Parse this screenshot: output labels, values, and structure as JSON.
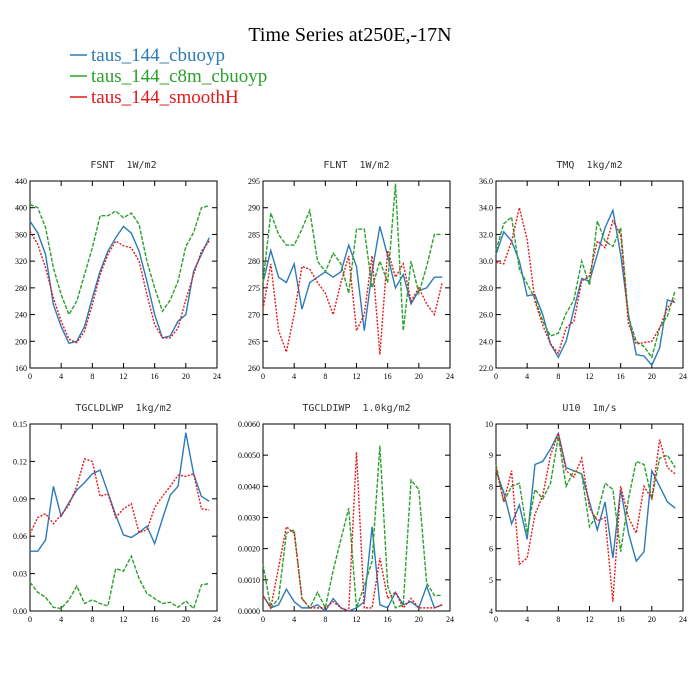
{
  "title": "Time Series at250E,-17N",
  "legend": [
    {
      "name": "taus_144_cbuoyp",
      "color": "#2b7bb9"
    },
    {
      "name": "taus_144_c8m_cbuoyp",
      "color": "#2ca02c"
    },
    {
      "name": "taus_144_smoothH",
      "color": "#e3191c"
    }
  ],
  "chart_data": [
    {
      "type": "line",
      "title": "FSNT  1W/m2",
      "x": [
        0,
        1,
        2,
        3,
        4,
        5,
        6,
        7,
        8,
        9,
        10,
        11,
        12,
        13,
        14,
        15,
        16,
        17,
        18,
        19,
        20,
        21,
        22,
        23
      ],
      "xlim": [
        0,
        24
      ],
      "xticks": [
        0,
        4,
        8,
        12,
        16,
        20,
        24
      ],
      "ylim": [
        160,
        440
      ],
      "yticks": [
        160,
        200,
        240,
        280,
        320,
        360,
        400,
        440
      ],
      "series": [
        {
          "values": [
            380,
            362,
            330,
            255,
            222,
            197,
            200,
            222,
            265,
            305,
            335,
            355,
            372,
            362,
            335,
            290,
            240,
            205,
            208,
            230,
            240,
            305,
            330,
            355
          ]
        },
        {
          "values": [
            405,
            400,
            370,
            310,
            270,
            240,
            260,
            300,
            340,
            388,
            388,
            395,
            385,
            392,
            375,
            320,
            280,
            245,
            262,
            290,
            342,
            363,
            400,
            403
          ]
        },
        {
          "values": [
            365,
            345,
            310,
            265,
            230,
            203,
            198,
            215,
            255,
            300,
            330,
            350,
            343,
            340,
            320,
            270,
            225,
            205,
            205,
            220,
            262,
            300,
            335,
            350
          ]
        }
      ]
    },
    {
      "type": "line",
      "title": "FLNT  1W/m2",
      "x": [
        0,
        1,
        2,
        3,
        4,
        5,
        6,
        7,
        8,
        9,
        10,
        11,
        12,
        13,
        14,
        15,
        16,
        17,
        18,
        19,
        20,
        21,
        22,
        23
      ],
      "xlim": [
        0,
        24
      ],
      "xticks": [
        0,
        4,
        8,
        12,
        16,
        20,
        24
      ],
      "ylim": [
        260,
        295
      ],
      "yticks": [
        260,
        265,
        270,
        275,
        280,
        285,
        290,
        295
      ],
      "series": [
        {
          "values": [
            276,
            282,
            277,
            276,
            279.5,
            271,
            276,
            277,
            278,
            277,
            278,
            283,
            279,
            267,
            278,
            286.5,
            281,
            275,
            277.5,
            272,
            274.5,
            275,
            277,
            277
          ]
        },
        {
          "values": [
            276,
            289,
            285,
            283,
            283,
            286,
            289.5,
            280,
            278,
            281.5,
            279.5,
            274,
            286,
            286,
            275,
            280,
            276,
            294.5,
            267,
            280,
            274,
            279,
            285,
            285
          ]
        },
        {
          "values": [
            271,
            279.5,
            267,
            263,
            270,
            279,
            278.5,
            276,
            274,
            270,
            276,
            281,
            267,
            270,
            281,
            262.5,
            282,
            277,
            279.5,
            272.5,
            275,
            272,
            270,
            276
          ]
        }
      ]
    },
    {
      "type": "line",
      "title": "TMQ  1kg/m2",
      "x": [
        0,
        1,
        2,
        3,
        4,
        5,
        6,
        7,
        8,
        9,
        10,
        11,
        12,
        13,
        14,
        15,
        16,
        17,
        18,
        19,
        20,
        21,
        22,
        23
      ],
      "xlim": [
        0,
        24
      ],
      "xticks": [
        0,
        4,
        8,
        12,
        16,
        20,
        24
      ],
      "ylim": [
        22,
        36
      ],
      "yticks": [
        {
          "value": 22,
          "label": "22.0"
        },
        {
          "value": 24,
          "label": "24.0"
        },
        {
          "value": 26,
          "label": "26.0"
        },
        {
          "value": 28,
          "label": "28.0"
        },
        {
          "value": 30,
          "label": "30.0"
        },
        {
          "value": 32,
          "label": "32.0"
        },
        {
          "value": 34,
          "label": "34.0"
        },
        {
          "value": 36,
          "label": "36.0"
        }
      ],
      "series": [
        {
          "values": [
            30.5,
            32.2,
            31.5,
            30,
            27.4,
            27.5,
            26,
            23.8,
            22.8,
            24,
            26.4,
            28.7,
            28.5,
            30.5,
            32.5,
            33.8,
            30.5,
            26,
            23,
            22.9,
            22.2,
            23.5,
            27.1,
            26.9
          ]
        },
        {
          "values": [
            30.8,
            32.8,
            33.3,
            29.4,
            28.3,
            27.2,
            25.5,
            24.4,
            24.6,
            26.1,
            27.1,
            30,
            28.2,
            33,
            31.5,
            31.1,
            32.5,
            25.8,
            24,
            23.6,
            22.8,
            25,
            25.9,
            27.8
          ]
        },
        {
          "values": [
            29.9,
            29.8,
            31.5,
            34,
            31.6,
            27,
            25.2,
            23.8,
            23.1,
            25,
            25.5,
            28.5,
            28.9,
            31.5,
            31,
            33,
            32,
            25.3,
            23.8,
            23.9,
            24,
            25,
            26.5,
            27.2
          ]
        }
      ]
    },
    {
      "type": "line",
      "title": "TGCLDLWP  1kg/m2",
      "x": [
        0,
        1,
        2,
        3,
        4,
        5,
        6,
        7,
        8,
        9,
        10,
        11,
        12,
        13,
        14,
        15,
        16,
        17,
        18,
        19,
        20,
        21,
        22,
        23
      ],
      "xlim": [
        0,
        24
      ],
      "xticks": [
        0,
        4,
        8,
        12,
        16,
        20,
        24
      ],
      "ylim": [
        0,
        0.15
      ],
      "yticks": [
        {
          "value": 0,
          "label": "0.00"
        },
        0.03,
        0.06,
        0.09,
        0.12,
        0.15
      ],
      "series": [
        {
          "values": [
            0.048,
            0.048,
            0.057,
            0.1,
            0.076,
            0.087,
            0.097,
            0.103,
            0.11,
            0.113,
            0.095,
            0.077,
            0.061,
            0.059,
            0.063,
            0.068,
            0.054,
            0.074,
            0.093,
            0.1,
            0.143,
            0.11,
            0.092,
            0.088
          ]
        },
        {
          "values": [
            0.023,
            0.015,
            0.011,
            0.003,
            0.002,
            0.009,
            0.02,
            0.006,
            0.009,
            0.006,
            0.004,
            0.034,
            0.032,
            0.044,
            0.026,
            0.014,
            0.01,
            0.006,
            0.007,
            0.003,
            0.008,
            0.002,
            0.021,
            0.022
          ]
        },
        {
          "values": [
            0.062,
            0.075,
            0.078,
            0.07,
            0.077,
            0.085,
            0.1,
            0.122,
            0.12,
            0.092,
            0.094,
            0.075,
            0.082,
            0.086,
            0.063,
            0.065,
            0.083,
            0.092,
            0.1,
            0.109,
            0.108,
            0.11,
            0.082,
            0.081
          ]
        }
      ]
    },
    {
      "type": "line",
      "title": "TGCLDIWP  1.0kg/m2",
      "x": [
        0,
        1,
        2,
        3,
        4,
        5,
        6,
        7,
        8,
        9,
        10,
        11,
        12,
        13,
        14,
        15,
        16,
        17,
        18,
        19,
        20,
        21,
        22,
        23
      ],
      "xlim": [
        0,
        24
      ],
      "xticks": [
        0,
        4,
        8,
        12,
        16,
        20,
        24
      ],
      "ylim": [
        0,
        0.006
      ],
      "yticks": [
        {
          "value": 0,
          "label": "0.0000"
        },
        {
          "value": 0.001,
          "label": "0.0010"
        },
        {
          "value": 0.002,
          "label": "0.0020"
        },
        {
          "value": 0.003,
          "label": "0.0030"
        },
        {
          "value": 0.004,
          "label": "0.0040"
        },
        {
          "value": 0.005,
          "label": "0.0050"
        },
        {
          "value": 0.006,
          "label": "0.0060"
        }
      ],
      "series": [
        {
          "values": [
            0.0005,
            0.0001,
            0.0002,
            0.0007,
            0.0003,
            0.0001,
            0.0001,
            0.0002,
            0,
            0.0004,
            0.0001,
            0,
            0.0001,
            0.0003,
            0.0027,
            0.0002,
            0.0001,
            0.0006,
            0.0002,
            0.0003,
            0.0001,
            0.0008,
            0.0001,
            0.0002
          ]
        },
        {
          "values": [
            0.0015,
            0.0001,
            0.0004,
            0.0025,
            0.0026,
            0.0004,
            0.0001,
            0.0006,
            0.0001,
            0.0013,
            0.0023,
            0.0033,
            0.0001,
            0.0008,
            0.0016,
            0.0053,
            0.0008,
            0.0001,
            0.0002,
            0.0042,
            0.0039,
            0.0009,
            0.0005,
            0.0005
          ]
        },
        {
          "values": [
            0.0005,
            0.0001,
            0.0014,
            0.0027,
            0.0025,
            0.0004,
            0.0001,
            0.0001,
            0.0001,
            0.0003,
            0.0001,
            0,
            0.0051,
            0.0001,
            0.0001,
            0.0017,
            0.0004,
            0.0006,
            0.0001,
            0.0004,
            0.0001,
            0.0001,
            0.0001,
            0.0002
          ]
        }
      ]
    },
    {
      "type": "line",
      "title": "U10  1m/s",
      "x": [
        0,
        1,
        2,
        3,
        4,
        5,
        6,
        7,
        8,
        9,
        10,
        11,
        12,
        13,
        14,
        15,
        16,
        17,
        18,
        19,
        20,
        21,
        22,
        23
      ],
      "xlim": [
        0,
        24
      ],
      "xticks": [
        0,
        4,
        8,
        12,
        16,
        20,
        24
      ],
      "ylim": [
        4,
        10
      ],
      "yticks": [
        4,
        5,
        6,
        7,
        8,
        9,
        10
      ],
      "series": [
        {
          "values": [
            8.5,
            7.8,
            6.8,
            7.4,
            6.3,
            8.7,
            8.8,
            9.2,
            9.7,
            8.6,
            8.5,
            8.4,
            7.5,
            6.6,
            7.5,
            5.7,
            7.9,
            6.5,
            5.6,
            5.9,
            8.5,
            8,
            7.5,
            7.3
          ]
        },
        {
          "values": [
            8.7,
            7.5,
            8.0,
            8.1,
            6.5,
            7.9,
            7.6,
            8.1,
            9.6,
            8.0,
            8.5,
            8.4,
            6.7,
            7.1,
            8.1,
            7.9,
            5.9,
            7.6,
            8.8,
            8.7,
            7.6,
            8.9,
            9.0,
            8.6
          ]
        },
        {
          "values": [
            8.6,
            7.5,
            8.5,
            5.5,
            5.7,
            7.1,
            7.7,
            9.0,
            9.7,
            8.5,
            8.3,
            8.9,
            7.3,
            6.9,
            7.0,
            4.3,
            8.0,
            7.0,
            6.5,
            8.0,
            7.6,
            9.5,
            8.6,
            8.4
          ]
        }
      ]
    }
  ]
}
